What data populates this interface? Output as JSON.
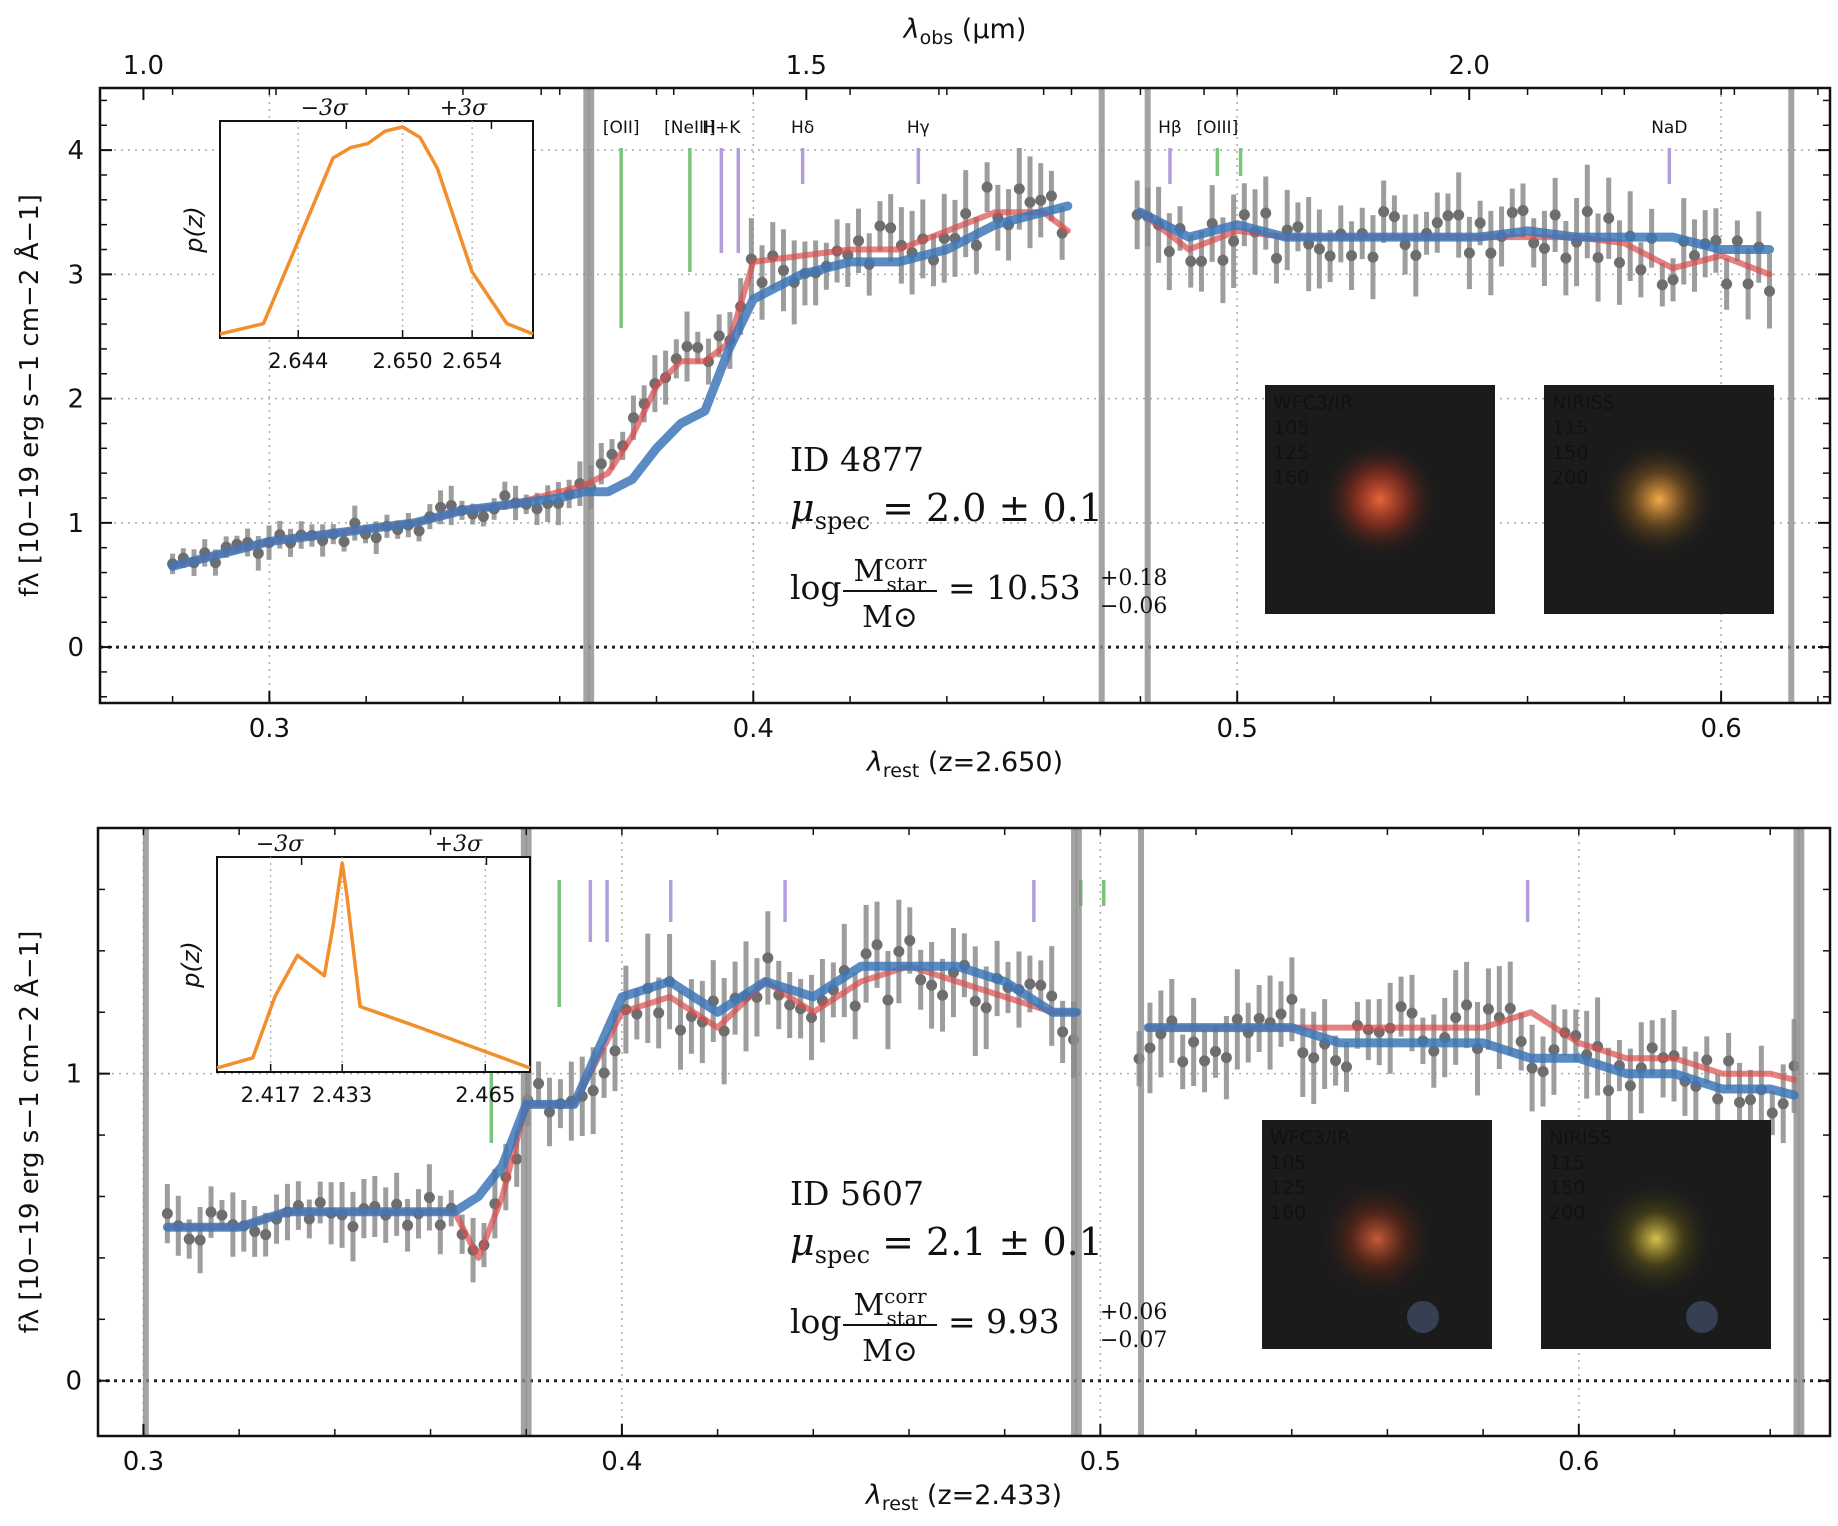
{
  "chart_data": [
    {
      "type": "line",
      "panel": "top",
      "xlabel": "λrest (z=2.650)",
      "xlabel_main": "λ",
      "xlabel_sub": "rest",
      "xlabel_tail": " (z=2.650)",
      "top_axis_label_main": "λ",
      "top_axis_label_sub": "obs",
      "top_axis_label_tail": " (μm)",
      "top_ticks": [
        1.0,
        1.5,
        2.0
      ],
      "top_tick_labels": [
        "1.0",
        "1.5",
        "2.0"
      ],
      "ylabel": "fλ [10−19 erg s−1 cm−2 Å−1]",
      "xlim": [
        0.265,
        0.6225
      ],
      "ylim": [
        -0.45,
        4.5
      ],
      "x_ticks": [
        0.3,
        0.4,
        0.5,
        0.6
      ],
      "x_tick_labels": [
        "0.3",
        "0.4",
        "0.5",
        "0.6"
      ],
      "y_ticks": [
        0,
        1,
        2,
        3,
        4
      ],
      "y_tick_labels": [
        "0",
        "1",
        "2",
        "3",
        "4"
      ],
      "redshift": 2.65,
      "gap": [
        0.466,
        0.478
      ],
      "series": [
        {
          "name": "data",
          "color": "#7f7f7f",
          "x": [
            0.28,
            0.29,
            0.3,
            0.31,
            0.32,
            0.33,
            0.34,
            0.35,
            0.36,
            0.365,
            0.37,
            0.375,
            0.38,
            0.385,
            0.39,
            0.395,
            0.4,
            0.41,
            0.42,
            0.43,
            0.44,
            0.45,
            0.46,
            0.465,
            0.48,
            0.49,
            0.5,
            0.51,
            0.52,
            0.53,
            0.54,
            0.55,
            0.56,
            0.57,
            0.58,
            0.59,
            0.6,
            0.61
          ],
          "y": [
            0.65,
            0.75,
            0.85,
            0.9,
            0.95,
            1.0,
            1.1,
            1.15,
            1.25,
            1.3,
            1.4,
            1.7,
            2.1,
            2.3,
            2.3,
            2.45,
            3.1,
            3.15,
            3.2,
            3.2,
            3.35,
            3.5,
            3.5,
            3.35,
            3.5,
            3.2,
            3.35,
            3.3,
            3.3,
            3.3,
            3.3,
            3.3,
            3.3,
            3.3,
            3.25,
            3.05,
            3.15,
            3.0
          ]
        },
        {
          "name": "model-red",
          "color": "#d94b4b",
          "x": [
            0.28,
            0.29,
            0.3,
            0.31,
            0.32,
            0.33,
            0.34,
            0.35,
            0.36,
            0.365,
            0.37,
            0.375,
            0.38,
            0.385,
            0.39,
            0.395,
            0.4,
            0.41,
            0.42,
            0.43,
            0.44,
            0.45,
            0.46,
            0.465,
            0.48,
            0.49,
            0.5,
            0.51,
            0.52,
            0.53,
            0.54,
            0.55,
            0.56,
            0.57,
            0.58,
            0.59,
            0.6,
            0.61
          ],
          "y": [
            0.65,
            0.75,
            0.85,
            0.9,
            0.95,
            1.0,
            1.1,
            1.15,
            1.25,
            1.3,
            1.4,
            1.7,
            2.1,
            2.3,
            2.3,
            2.45,
            3.1,
            3.15,
            3.2,
            3.2,
            3.35,
            3.5,
            3.5,
            3.35,
            3.5,
            3.2,
            3.35,
            3.3,
            3.3,
            3.3,
            3.3,
            3.3,
            3.3,
            3.3,
            3.25,
            3.05,
            3.15,
            3.0
          ]
        },
        {
          "name": "model-blue",
          "color": "#3d77b8",
          "x": [
            0.28,
            0.29,
            0.3,
            0.31,
            0.32,
            0.33,
            0.34,
            0.35,
            0.36,
            0.365,
            0.37,
            0.375,
            0.38,
            0.385,
            0.39,
            0.395,
            0.4,
            0.41,
            0.42,
            0.43,
            0.44,
            0.45,
            0.46,
            0.465,
            0.48,
            0.49,
            0.5,
            0.51,
            0.52,
            0.53,
            0.54,
            0.55,
            0.56,
            0.57,
            0.58,
            0.59,
            0.6,
            0.61
          ],
          "y": [
            0.65,
            0.75,
            0.85,
            0.9,
            0.95,
            1.0,
            1.1,
            1.15,
            1.2,
            1.25,
            1.25,
            1.35,
            1.6,
            1.8,
            1.9,
            2.4,
            2.8,
            3.0,
            3.1,
            3.1,
            3.2,
            3.4,
            3.5,
            3.55,
            3.5,
            3.3,
            3.4,
            3.3,
            3.3,
            3.3,
            3.3,
            3.3,
            3.35,
            3.3,
            3.3,
            3.3,
            3.2,
            3.2
          ]
        }
      ],
      "lines": [
        {
          "label": "[OII]",
          "x": 0.3727,
          "kind": "emission",
          "color": "#7cc47c"
        },
        {
          "label": "[NeIII]",
          "x": 0.3869,
          "kind": "emission",
          "color": "#7cc47c"
        },
        {
          "label": "H+K",
          "x": 0.3934,
          "kind": "absorption",
          "color": "#b39ddb"
        },
        {
          "label": "",
          "x": 0.3969,
          "kind": "absorption",
          "color": "#b39ddb"
        },
        {
          "label": "Hδ",
          "x": 0.4102,
          "kind": "absorption",
          "color": "#b39ddb"
        },
        {
          "label": "Hγ",
          "x": 0.4341,
          "kind": "absorption",
          "color": "#b39ddb"
        },
        {
          "label": "Hβ",
          "x": 0.4861,
          "kind": "absorption",
          "color": "#b39ddb"
        },
        {
          "label": "[OIII]",
          "x": 0.4959,
          "kind": "emission",
          "color": "#7cc47c"
        },
        {
          "label": "",
          "x": 0.5007,
          "kind": "emission",
          "color": "#7cc47c"
        },
        {
          "label": "NaD",
          "x": 0.5893,
          "kind": "absorption",
          "color": "#b39ddb"
        }
      ],
      "annotation": {
        "id_text": "ID 4877",
        "mu_label": "μ",
        "mu_sub": "spec",
        "mu_value": "= 2.0 ± 0.1",
        "log_prefix": "log",
        "mass_num": "M",
        "mass_num_sup": "corr",
        "mass_num_sub": "star",
        "mass_den": "M⊙",
        "mass_value": "= 10.53",
        "mass_err_up": "+0.18",
        "mass_err_down": "−0.06"
      },
      "inset": {
        "ylabel": "p(z)",
        "top_labels": [
          "−3σ",
          "+3σ"
        ],
        "x_tick_labels": [
          "2.644",
          "2.650",
          "2.654"
        ],
        "x_ticks": [
          2.644,
          2.65,
          2.654
        ],
        "xlim": [
          2.6395,
          2.6575
        ],
        "pz_x": [
          2.6395,
          2.642,
          2.644,
          2.646,
          2.647,
          2.648,
          2.649,
          2.65,
          2.651,
          2.652,
          2.653,
          2.654,
          2.656,
          2.6575
        ],
        "pz_y": [
          0.0,
          0.05,
          0.45,
          0.85,
          0.9,
          0.92,
          0.98,
          1.0,
          0.95,
          0.8,
          0.55,
          0.3,
          0.05,
          0.0
        ],
        "color": "#f28e2b"
      },
      "thumbnails": [
        {
          "instrument": "WFC3/IR",
          "filters": [
            "105",
            "125",
            "160"
          ],
          "core_color": "#e8643a",
          "halo_color": "#8b2e1f"
        },
        {
          "instrument": "NIRISS",
          "filters": [
            "115",
            "150",
            "200"
          ],
          "core_color": "#f7a94a",
          "halo_color": "#6b4a1e"
        }
      ]
    },
    {
      "type": "line",
      "panel": "bottom",
      "xlabel": "λrest (z=2.433)",
      "xlabel_main": "λ",
      "xlabel_sub": "rest",
      "xlabel_tail": " (z=2.433)",
      "ylabel": "fλ [10−19 erg s−1 cm−2 Å−1]",
      "xlim": [
        0.2905,
        0.6525
      ],
      "ylim": [
        -0.18,
        1.8
      ],
      "x_ticks": [
        0.3,
        0.4,
        0.5,
        0.6
      ],
      "x_tick_labels": [
        "0.3",
        "0.4",
        "0.5",
        "0.6"
      ],
      "y_ticks": [
        0,
        1
      ],
      "y_tick_labels": [
        "0",
        "1"
      ],
      "redshift": 2.433,
      "gap": [
        0.4965,
        0.5075
      ],
      "series": [
        {
          "name": "data",
          "color": "#7f7f7f",
          "x": [
            0.305,
            0.31,
            0.32,
            0.33,
            0.34,
            0.35,
            0.36,
            0.365,
            0.37,
            0.375,
            0.38,
            0.39,
            0.4,
            0.41,
            0.42,
            0.43,
            0.44,
            0.45,
            0.46,
            0.47,
            0.48,
            0.49,
            0.495,
            0.51,
            0.52,
            0.53,
            0.54,
            0.55,
            0.56,
            0.57,
            0.58,
            0.59,
            0.6,
            0.61,
            0.62,
            0.63,
            0.64,
            0.645
          ],
          "y": [
            0.5,
            0.5,
            0.5,
            0.55,
            0.55,
            0.55,
            0.55,
            0.55,
            0.4,
            0.6,
            0.9,
            0.9,
            1.2,
            1.25,
            1.15,
            1.3,
            1.2,
            1.3,
            1.35,
            1.3,
            1.25,
            1.2,
            1.2,
            1.1,
            1.1,
            1.1,
            1.15,
            1.1,
            1.15,
            1.1,
            1.15,
            1.1,
            1.05,
            1.0,
            1.0,
            1.0,
            0.95,
            0.95
          ]
        },
        {
          "name": "model-red",
          "color": "#d94b4b",
          "x": [
            0.305,
            0.31,
            0.32,
            0.33,
            0.34,
            0.35,
            0.36,
            0.365,
            0.37,
            0.375,
            0.38,
            0.39,
            0.4,
            0.41,
            0.42,
            0.43,
            0.44,
            0.45,
            0.46,
            0.47,
            0.48,
            0.49,
            0.495,
            0.51,
            0.52,
            0.53,
            0.54,
            0.55,
            0.56,
            0.57,
            0.58,
            0.59,
            0.6,
            0.61,
            0.62,
            0.63,
            0.64,
            0.645
          ],
          "y": [
            0.5,
            0.5,
            0.5,
            0.55,
            0.55,
            0.55,
            0.55,
            0.55,
            0.4,
            0.6,
            0.9,
            0.9,
            1.2,
            1.25,
            1.15,
            1.3,
            1.2,
            1.3,
            1.35,
            1.3,
            1.25,
            1.2,
            1.2,
            1.15,
            1.15,
            1.15,
            1.15,
            1.15,
            1.15,
            1.15,
            1.15,
            1.2,
            1.1,
            1.05,
            1.05,
            1.0,
            1.0,
            0.98
          ]
        },
        {
          "name": "model-blue",
          "color": "#3d77b8",
          "x": [
            0.305,
            0.31,
            0.32,
            0.33,
            0.34,
            0.35,
            0.36,
            0.365,
            0.37,
            0.375,
            0.38,
            0.39,
            0.4,
            0.41,
            0.42,
            0.43,
            0.44,
            0.45,
            0.46,
            0.47,
            0.48,
            0.49,
            0.495,
            0.51,
            0.52,
            0.53,
            0.54,
            0.55,
            0.56,
            0.57,
            0.58,
            0.59,
            0.6,
            0.61,
            0.62,
            0.63,
            0.64,
            0.645
          ],
          "y": [
            0.5,
            0.5,
            0.5,
            0.55,
            0.55,
            0.55,
            0.55,
            0.55,
            0.6,
            0.7,
            0.9,
            0.9,
            1.25,
            1.3,
            1.2,
            1.3,
            1.25,
            1.35,
            1.35,
            1.35,
            1.3,
            1.2,
            1.2,
            1.15,
            1.15,
            1.15,
            1.15,
            1.1,
            1.1,
            1.1,
            1.1,
            1.05,
            1.05,
            1.0,
            1.0,
            0.95,
            0.95,
            0.93
          ]
        }
      ],
      "lines": [
        {
          "label": "",
          "x": 0.3727,
          "kind": "emission",
          "color": "#7cc47c"
        },
        {
          "label": "",
          "x": 0.3869,
          "kind": "emission",
          "color": "#7cc47c"
        },
        {
          "label": "",
          "x": 0.3934,
          "kind": "absorption",
          "color": "#b39ddb"
        },
        {
          "label": "",
          "x": 0.3969,
          "kind": "absorption",
          "color": "#b39ddb"
        },
        {
          "label": "",
          "x": 0.4102,
          "kind": "absorption",
          "color": "#b39ddb"
        },
        {
          "label": "",
          "x": 0.4341,
          "kind": "absorption",
          "color": "#b39ddb"
        },
        {
          "label": "",
          "x": 0.4861,
          "kind": "absorption",
          "color": "#b39ddb"
        },
        {
          "label": "",
          "x": 0.4959,
          "kind": "emission",
          "color": "#7cc47c"
        },
        {
          "label": "",
          "x": 0.5007,
          "kind": "emission",
          "color": "#7cc47c"
        },
        {
          "label": "",
          "x": 0.5893,
          "kind": "absorption",
          "color": "#b39ddb"
        }
      ],
      "annotation": {
        "id_text": "ID 5607",
        "mu_label": "μ",
        "mu_sub": "spec",
        "mu_value": "= 2.1 ± 0.1",
        "log_prefix": "log",
        "mass_num": "M",
        "mass_num_sup": "corr",
        "mass_num_sub": "star",
        "mass_den": "M⊙",
        "mass_value": "= 9.93",
        "mass_err_up": "+0.06",
        "mass_err_down": "−0.07"
      },
      "inset": {
        "ylabel": "p(z)",
        "top_labels": [
          "−3σ",
          "+3σ"
        ],
        "x_tick_labels": [
          "2.417",
          "2.433",
          "2.465"
        ],
        "x_ticks": [
          2.417,
          2.433,
          2.465
        ],
        "xlim": [
          2.405,
          2.475
        ],
        "pz_x": [
          2.405,
          2.413,
          2.418,
          2.423,
          2.426,
          2.429,
          2.431,
          2.433,
          2.434,
          2.437,
          2.45,
          2.465,
          2.475
        ],
        "pz_y": [
          0.0,
          0.05,
          0.35,
          0.55,
          0.5,
          0.45,
          0.7,
          1.0,
          0.85,
          0.3,
          0.2,
          0.08,
          0.0
        ],
        "color": "#f28e2b"
      },
      "thumbnails": [
        {
          "instrument": "WFC3/IR",
          "filters": [
            "105",
            "125",
            "160"
          ],
          "core_color": "#c65a36",
          "halo_color": "#5a2618"
        },
        {
          "instrument": "NIRISS",
          "filters": [
            "115",
            "150",
            "200"
          ],
          "core_color": "#d8c04a",
          "halo_color": "#4b4418"
        }
      ]
    }
  ]
}
